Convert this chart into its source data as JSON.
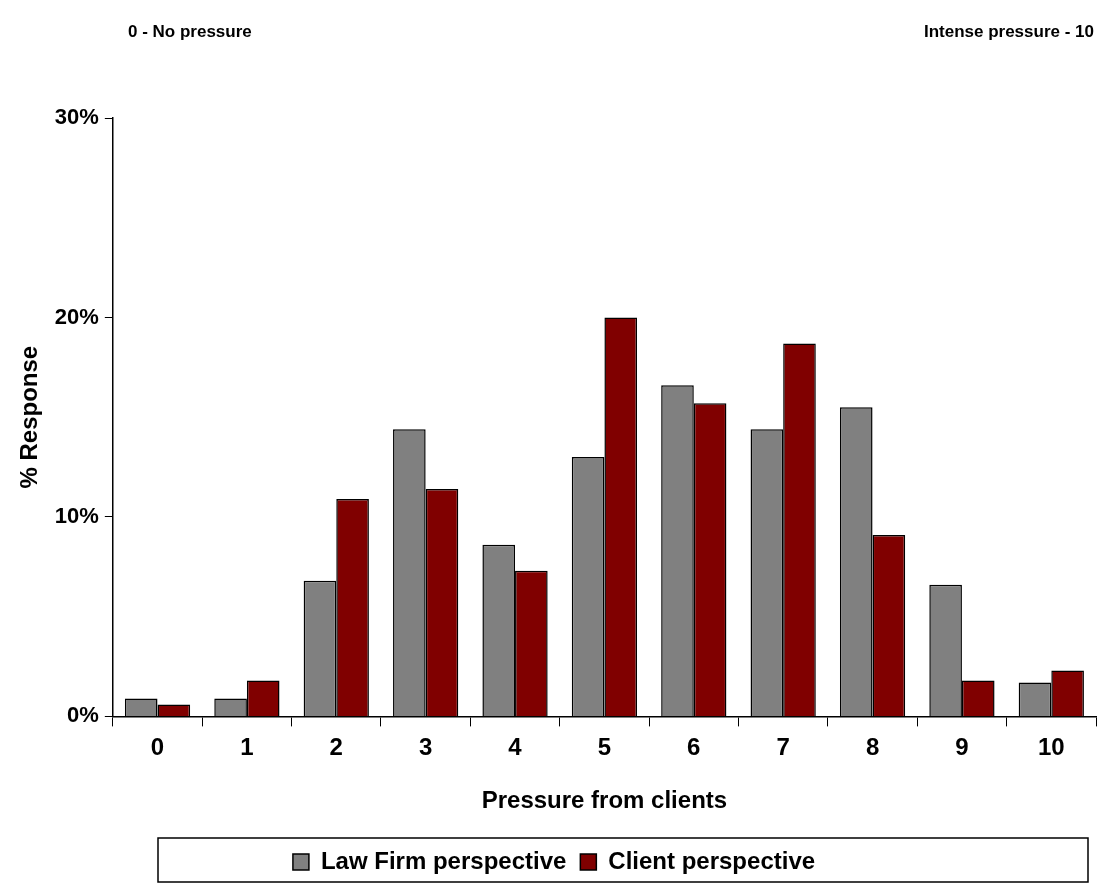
{
  "chart_data": {
    "type": "bar",
    "xlabel": "Pressure from clients",
    "ylabel": "% Response",
    "annotations": [
      "0 - No pressure",
      "Intense pressure - 10"
    ],
    "categories": [
      "0",
      "1",
      "2",
      "3",
      "4",
      "5",
      "6",
      "7",
      "8",
      "9",
      "10"
    ],
    "series": [
      {
        "name": "Law Firm perspective",
        "color": "#808080",
        "values": [
          0.9,
          0.9,
          6.8,
          14.4,
          8.6,
          13.0,
          16.6,
          14.4,
          15.5,
          6.6,
          1.7
        ]
      },
      {
        "name": "Client perspective",
        "color": "#800000",
        "values": [
          0.6,
          1.8,
          10.9,
          11.4,
          7.3,
          20.0,
          15.7,
          18.7,
          9.1,
          1.8,
          2.3
        ]
      }
    ],
    "ylim": [
      0,
      30
    ],
    "yticks": [
      {
        "value": 0,
        "label": "0%"
      },
      {
        "value": 10,
        "label": "10%"
      },
      {
        "value": 20,
        "label": "20%"
      },
      {
        "value": 30,
        "label": "30%"
      }
    ],
    "grid": false,
    "legend": "bottom"
  }
}
